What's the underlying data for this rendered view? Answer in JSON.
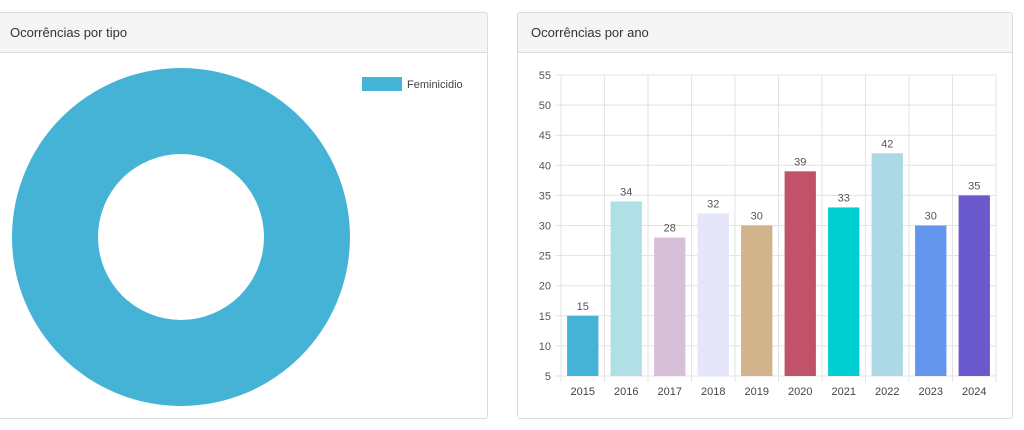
{
  "panels": {
    "left": {
      "title": "Ocorrências por tipo"
    },
    "right": {
      "title": "Ocorrências por ano"
    }
  },
  "chart_data": [
    {
      "type": "pie",
      "style": "doughnut",
      "title": "Ocorrências por tipo",
      "labels": [
        "Feminicidio"
      ],
      "values": [
        1
      ],
      "colors": [
        "#45b3d6"
      ],
      "legend": "top-right"
    },
    {
      "type": "bar",
      "title": "Ocorrências por ano",
      "categories": [
        "2015",
        "2016",
        "2017",
        "2018",
        "2019",
        "2020",
        "2021",
        "2022",
        "2023",
        "2024"
      ],
      "values": [
        15,
        34,
        28,
        32,
        30,
        39,
        33,
        42,
        30,
        35
      ],
      "colors": [
        "#45b3d6",
        "#b0e0e6",
        "#d8bfd8",
        "#e6e6fa",
        "#d2b48c",
        "#c0526a",
        "#00ced1",
        "#add8e6",
        "#6495ed",
        "#6a5acd"
      ],
      "ylim": [
        5,
        55
      ],
      "yticks": [
        5,
        10,
        15,
        20,
        25,
        30,
        35,
        40,
        45,
        50,
        55
      ],
      "grid": true,
      "data_labels": true
    }
  ]
}
